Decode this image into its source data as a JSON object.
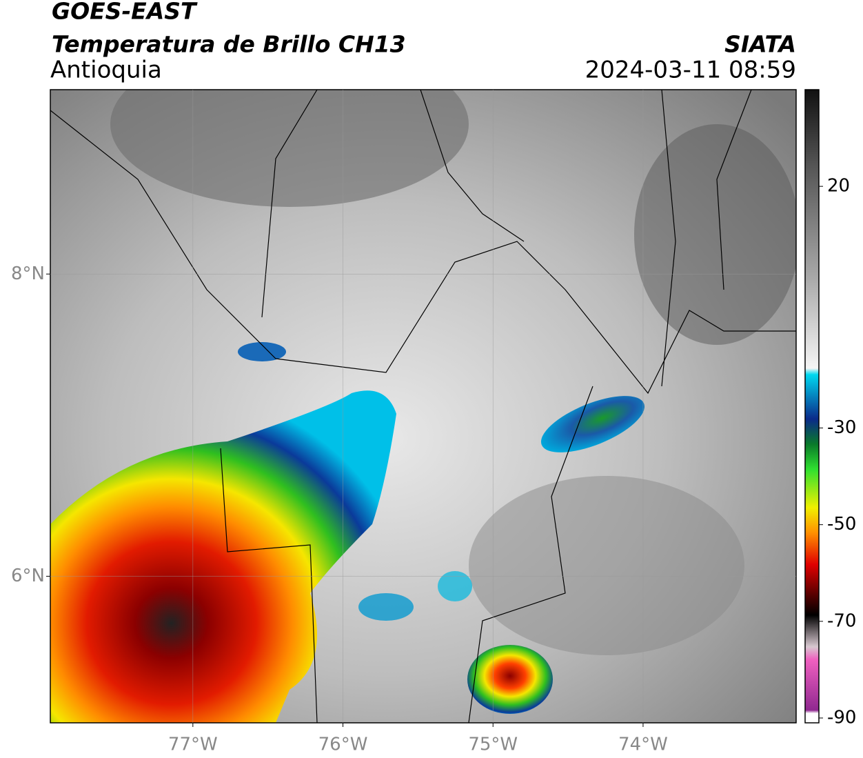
{
  "header": {
    "title": "GOES-EAST",
    "subtitle": "Temperatura de Brillo CH13",
    "region": "Antioquia",
    "source": "SIATA",
    "datetime": "2024-03-11 08:59"
  },
  "map": {
    "type": "map",
    "xlim": [
      -77.95,
      -72.98
    ],
    "ylim": [
      5.03,
      9.22
    ],
    "xticks": [
      {
        "value": -77,
        "label": "77°W"
      },
      {
        "value": -76,
        "label": "76°W"
      },
      {
        "value": -75,
        "label": "75°W"
      },
      {
        "value": -74,
        "label": "74°W"
      }
    ],
    "yticks": [
      {
        "value": 6,
        "label": "6°N"
      },
      {
        "value": 8,
        "label": "8°N"
      }
    ],
    "grid": true,
    "colorbar": {
      "lim": [
        -91,
        40
      ],
      "ticks": [
        20,
        -30,
        -50,
        -70,
        -90
      ]
    }
  }
}
